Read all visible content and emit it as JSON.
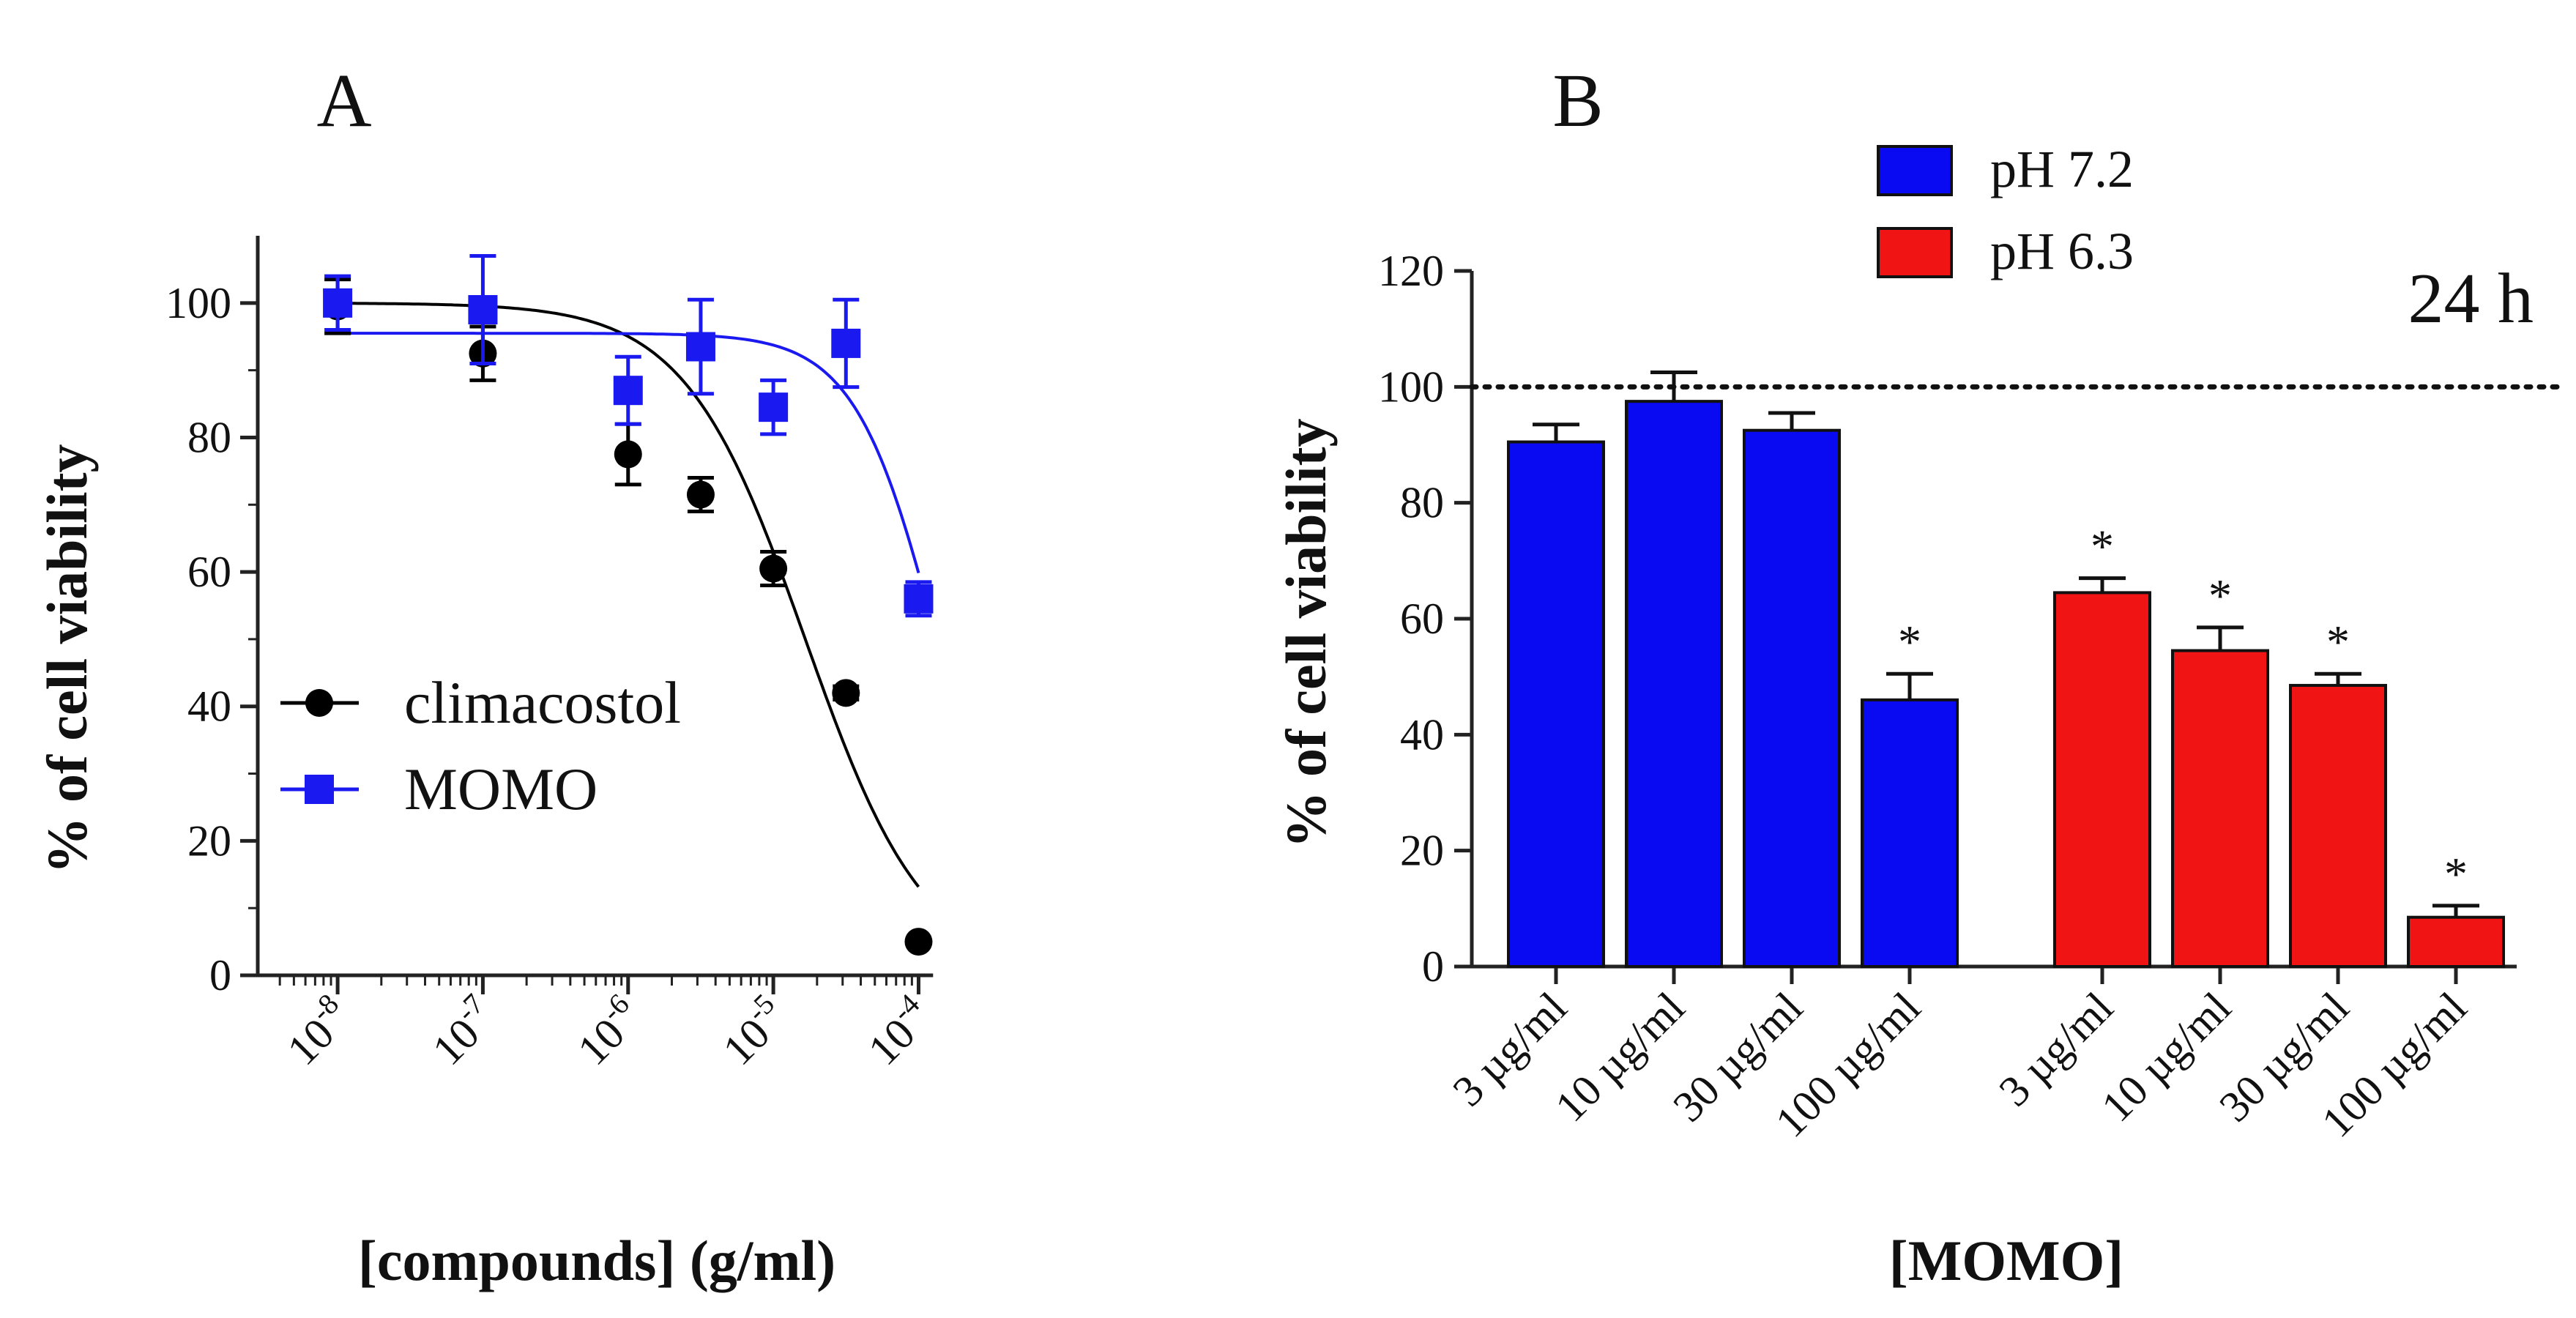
{
  "chart_data": [
    {
      "panel": "A",
      "type": "scatter",
      "xscale": "log",
      "xlabel": "[compounds] (g/ml)",
      "ylabel": "% of cell viability",
      "ylim": [
        0,
        110
      ],
      "yticks": [
        0,
        20,
        40,
        60,
        80,
        100
      ],
      "xticks": [
        {
          "exp": -8,
          "base": "10",
          "sup": "-8"
        },
        {
          "exp": -7,
          "base": "10",
          "sup": "-7"
        },
        {
          "exp": -6,
          "base": "10",
          "sup": "-6"
        },
        {
          "exp": -5,
          "base": "10",
          "sup": "-5"
        },
        {
          "exp": -4,
          "base": "10",
          "sup": "-4"
        }
      ],
      "series": [
        {
          "name": "climacostol",
          "color": "#000000",
          "marker": "circle",
          "points": [
            {
              "x_exp": -8,
              "y": 99.5,
              "err": 4
            },
            {
              "x_exp": -7,
              "y": 92.5,
              "err": 4
            },
            {
              "x_exp": -6,
              "y": 77.5,
              "err": 4.5
            },
            {
              "x_exp": -5.5,
              "y": 71.5,
              "err": 2.5
            },
            {
              "x_exp": -5,
              "y": 60.5,
              "err": 2.5
            },
            {
              "x_exp": -4.5,
              "y": 42,
              "err": 1
            },
            {
              "x_exp": -4,
              "y": 5,
              "err": 0.5
            }
          ],
          "fit": {
            "top": 100,
            "bottom": 0,
            "log_ic50": -4.78,
            "hill": 1.05
          }
        },
        {
          "name": "MOMO",
          "color": "#1a1af0",
          "marker": "square",
          "points": [
            {
              "x_exp": -8,
              "y": 100,
              "err": 4
            },
            {
              "x_exp": -7,
              "y": 99,
              "err": 8
            },
            {
              "x_exp": -6,
              "y": 87,
              "err": 5
            },
            {
              "x_exp": -5.5,
              "y": 93.5,
              "err": 7
            },
            {
              "x_exp": -5,
              "y": 84.5,
              "err": 4
            },
            {
              "x_exp": -4.5,
              "y": 94,
              "err": 6.5
            },
            {
              "x_exp": -4,
              "y": 56,
              "err": 2.5
            }
          ],
          "fit": {
            "top": 95.5,
            "bottom": 0,
            "log_ic50": -3.85,
            "hill": 1.5
          }
        }
      ]
    },
    {
      "panel": "B",
      "type": "bar",
      "xlabel": "[MOMO]",
      "ylabel": "% of cell viability",
      "ylim": [
        0,
        120
      ],
      "yticks": [
        0,
        20,
        40,
        60,
        80,
        100,
        120
      ],
      "reference_line": 100,
      "annotation": "24 h",
      "star_symbol": "*",
      "categories": [
        "3 µg/ml",
        "10 µg/ml",
        "30 µg/ml",
        "100 µg/ml"
      ],
      "series": [
        {
          "name": "pH 7.2",
          "color": "#0a0af2",
          "values": [
            90.5,
            97.5,
            92.5,
            46
          ],
          "errors": [
            3,
            5,
            3,
            4.5
          ],
          "significant": [
            false,
            false,
            false,
            true
          ]
        },
        {
          "name": "pH 6.3",
          "color": "#f01414",
          "values": [
            64.5,
            54.5,
            48.5,
            8.5
          ],
          "errors": [
            2.5,
            4,
            2,
            2
          ],
          "significant": [
            true,
            true,
            true,
            true
          ]
        }
      ]
    }
  ]
}
